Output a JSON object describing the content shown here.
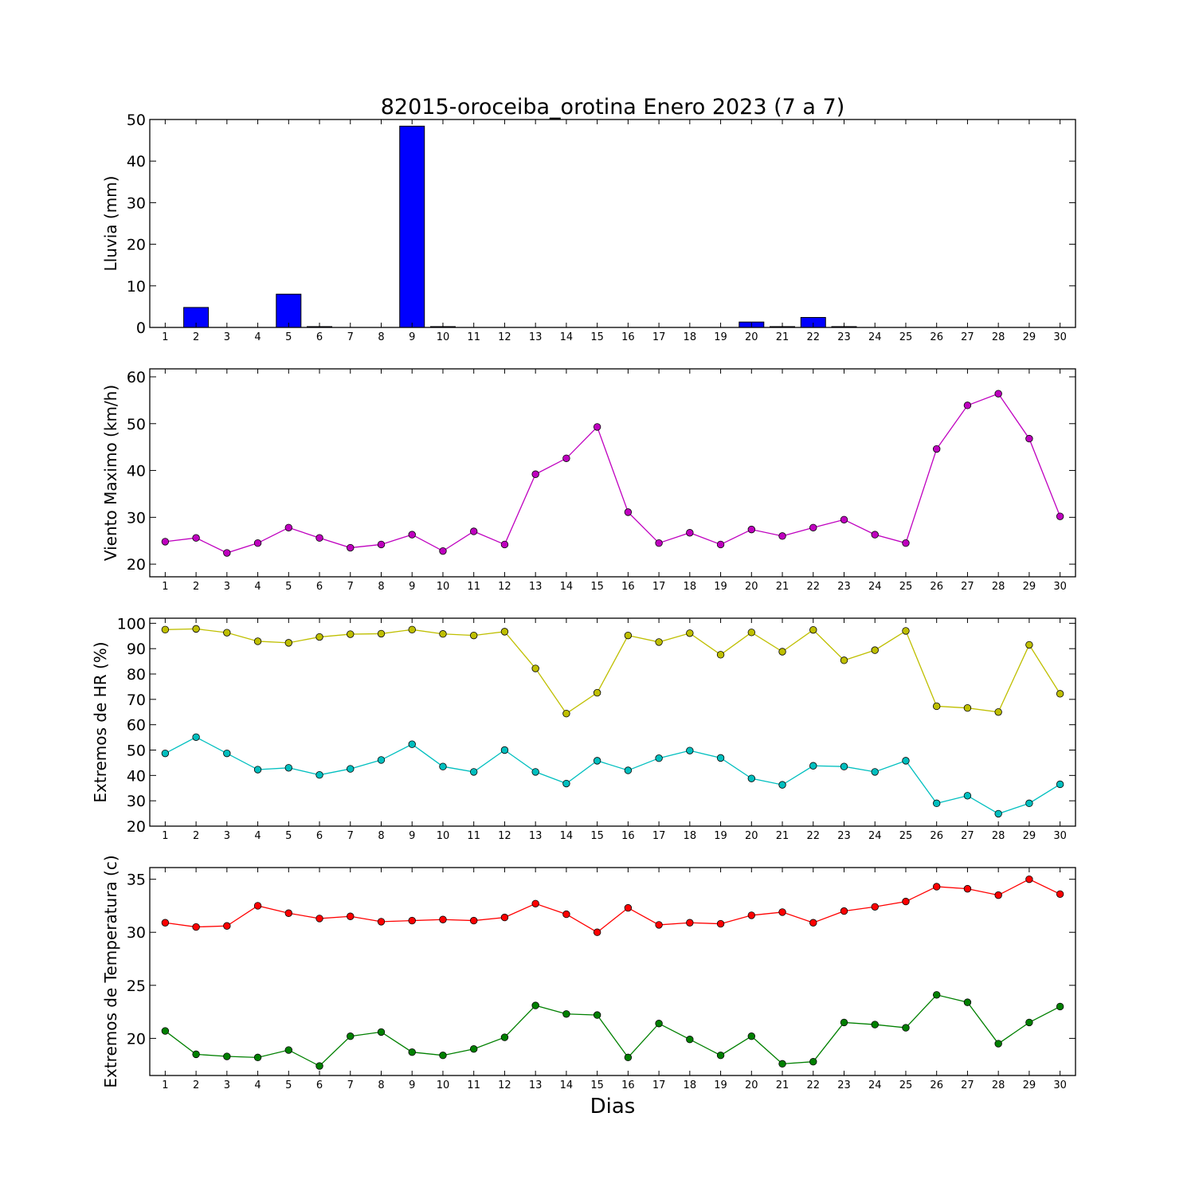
{
  "title": "82015-oroceiba_orotina Enero 2023  (7 a 7)",
  "xlabel": "Dias",
  "colors": {
    "rain_bar": "#0000ff",
    "wind": "#bf00bf",
    "hr_max": "#bfbf00",
    "hr_min": "#00bfbf",
    "temp_max": "#ff0000",
    "temp_min": "#008000"
  },
  "chart_data": [
    {
      "type": "bar",
      "ylabel": "Lluvia (mm)",
      "x": [
        1,
        2,
        3,
        4,
        5,
        6,
        7,
        8,
        9,
        10,
        11,
        12,
        13,
        14,
        15,
        16,
        17,
        18,
        19,
        20,
        21,
        22,
        23,
        24,
        25,
        26,
        27,
        28,
        29,
        30
      ],
      "series": [
        {
          "color": "#0000ff",
          "values": [
            0,
            4.8,
            0,
            0,
            8.0,
            0.2,
            0,
            0,
            48.4,
            0.2,
            0,
            0,
            0,
            0,
            0,
            0,
            0,
            0,
            0,
            1.3,
            0.2,
            2.4,
            0.2,
            0,
            0,
            0,
            0,
            0,
            0,
            0
          ]
        }
      ],
      "ylim": [
        0,
        50
      ],
      "yticks": [
        0,
        10,
        20,
        30,
        40,
        50
      ],
      "grid": false
    },
    {
      "type": "line",
      "ylabel": "Viento Maximo (km/h)",
      "x": [
        1,
        2,
        3,
        4,
        5,
        6,
        7,
        8,
        9,
        10,
        11,
        12,
        13,
        14,
        15,
        16,
        17,
        18,
        19,
        20,
        21,
        22,
        23,
        24,
        25,
        26,
        27,
        28,
        29,
        30
      ],
      "series": [
        {
          "color": "#bf00bf",
          "values": [
            24.8,
            25.6,
            22.4,
            24.5,
            27.8,
            25.6,
            23.5,
            24.2,
            26.3,
            22.8,
            27.0,
            24.2,
            39.2,
            42.6,
            49.3,
            31.1,
            24.5,
            26.7,
            24.2,
            27.4,
            26.0,
            27.8,
            29.5,
            26.3,
            24.5,
            44.6,
            53.9,
            56.4,
            46.8,
            30.2
          ]
        }
      ],
      "ylim": [
        17.3,
        61.7
      ],
      "yticks": [
        20,
        30,
        40,
        50,
        60
      ],
      "grid": false
    },
    {
      "type": "line",
      "ylabel": "Extremos de HR (%)",
      "x": [
        1,
        2,
        3,
        4,
        5,
        6,
        7,
        8,
        9,
        10,
        11,
        12,
        13,
        14,
        15,
        16,
        17,
        18,
        19,
        20,
        21,
        22,
        23,
        24,
        25,
        26,
        27,
        28,
        29,
        30
      ],
      "series": [
        {
          "color": "#bfbf00",
          "values": [
            97.5,
            97.8,
            96.3,
            92.9,
            92.3,
            94.6,
            95.7,
            95.9,
            97.5,
            95.8,
            95.2,
            96.7,
            82.2,
            64.4,
            72.6,
            95.2,
            92.6,
            96.1,
            87.6,
            96.4,
            88.8,
            97.4,
            85.4,
            89.4,
            97.0,
            67.3,
            66.6,
            65.0,
            91.5,
            72.2
          ]
        },
        {
          "color": "#00bfbf",
          "values": [
            48.7,
            55.1,
            48.7,
            42.3,
            43.0,
            40.2,
            42.6,
            46.1,
            52.3,
            43.5,
            41.4,
            50.0,
            41.4,
            36.8,
            45.8,
            42.0,
            46.8,
            49.8,
            46.9,
            38.8,
            36.3,
            43.8,
            43.5,
            41.4,
            45.8,
            29.0,
            32.0,
            24.9,
            29.0,
            36.5
          ]
        }
      ],
      "ylim": [
        20,
        102
      ],
      "yticks": [
        20,
        30,
        40,
        50,
        60,
        70,
        80,
        90,
        100
      ],
      "grid": false
    },
    {
      "type": "line",
      "ylabel": "Extremos de Temperatura (c)",
      "x": [
        1,
        2,
        3,
        4,
        5,
        6,
        7,
        8,
        9,
        10,
        11,
        12,
        13,
        14,
        15,
        16,
        17,
        18,
        19,
        20,
        21,
        22,
        23,
        24,
        25,
        26,
        27,
        28,
        29,
        30
      ],
      "series": [
        {
          "color": "#ff0000",
          "values": [
            30.9,
            30.5,
            30.6,
            32.5,
            31.8,
            31.3,
            31.5,
            31.0,
            31.1,
            31.2,
            31.1,
            31.4,
            32.7,
            31.7,
            30.0,
            32.3,
            30.7,
            30.9,
            30.8,
            31.6,
            31.9,
            30.9,
            32.0,
            32.4,
            32.9,
            34.3,
            34.1,
            33.5,
            35.0,
            33.6
          ]
        },
        {
          "color": "#008000",
          "values": [
            20.7,
            18.5,
            18.3,
            18.2,
            18.9,
            17.4,
            20.2,
            20.6,
            18.7,
            18.4,
            19.0,
            20.1,
            23.1,
            22.3,
            22.2,
            18.2,
            21.4,
            19.9,
            18.4,
            20.2,
            17.6,
            17.8,
            21.5,
            21.3,
            21.0,
            24.1,
            23.4,
            19.5,
            21.5,
            23.0
          ]
        }
      ],
      "ylim": [
        16.5,
        36.1
      ],
      "yticks": [
        20,
        25,
        30,
        35
      ],
      "grid": false
    }
  ]
}
